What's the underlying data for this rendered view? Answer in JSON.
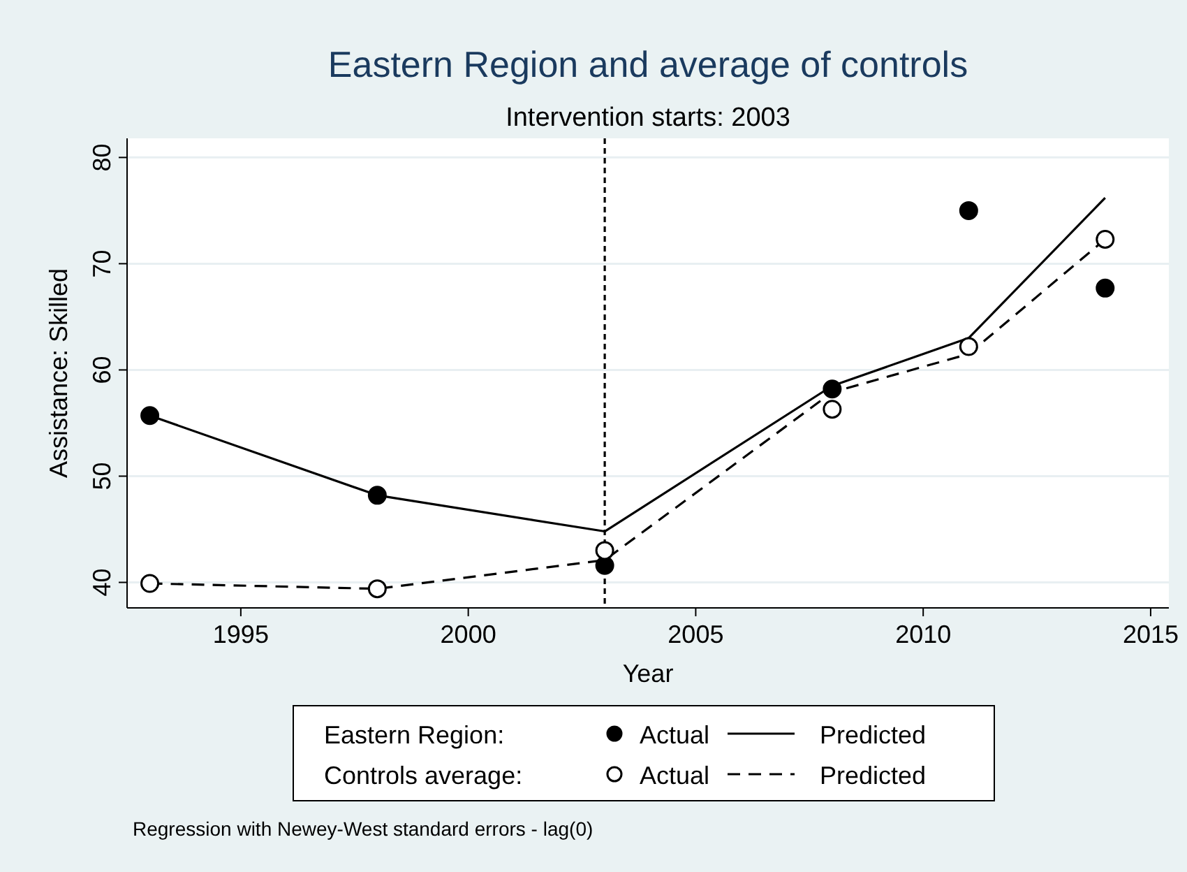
{
  "chart_data": {
    "type": "line",
    "title": "Eastern Region and average of controls",
    "subtitle": "Intervention starts: 2003",
    "xlabel": "Year",
    "ylabel": "Assistance: Skilled",
    "x": [
      1993,
      1998,
      2003,
      2008,
      2011,
      2014
    ],
    "series": [
      {
        "name": "Actual",
        "type": "scatter",
        "marker": "circle",
        "color": "#000000",
        "values": [
          55.7,
          48.2,
          41.6,
          58.2,
          75.0,
          67.7
        ]
      },
      {
        "name": "Predicted",
        "line_style": "solid",
        "color": "#000000",
        "values": [
          55.7,
          48.2,
          44.8,
          58.5,
          63.0,
          76.2
        ]
      },
      {
        "name": "Actual",
        "type": "scatter",
        "marker": "circle",
        "color": "#ffffff",
        "values": [
          39.9,
          39.4,
          43.0,
          56.3,
          62.2,
          72.3
        ]
      },
      {
        "name": "Predicted",
        "line_style": "dashed",
        "color": "#000000",
        "values": [
          39.9,
          39.4,
          42.1,
          57.9,
          61.5,
          72.3
        ]
      }
    ],
    "xlim": [
      1992.5,
      2015.4
    ],
    "xticks": [
      1995,
      2000,
      2005,
      2010,
      2015
    ],
    "ylim": [
      37.6,
      81.8
    ],
    "yticks": [
      40,
      50,
      60,
      70,
      80
    ],
    "grid": "y",
    "legend": "bottom",
    "ref_lines": [
      {
        "axis": "x",
        "value": 2003,
        "line_style": "dotted",
        "color": "#000000"
      }
    ],
    "annotations": [
      "Eastern Region:",
      "Controls average:",
      "Regression with Newey-West standard errors - lag(0)"
    ]
  }
}
